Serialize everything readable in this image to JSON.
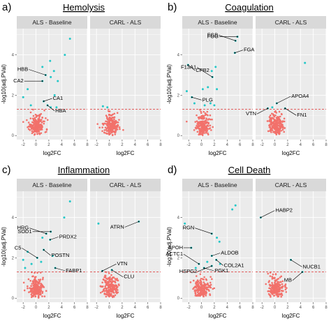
{
  "figure": {
    "xlabel": "log2FC",
    "ylabel": "-log10(adj.PVal)"
  },
  "colors": {
    "panel_bg": "#ebebeb",
    "strip_bg": "#d9d9d9",
    "grid": "#ffffff",
    "significant": "#22c7c7",
    "nonsignificant": "#f2716b",
    "threshold_line": "#e03030"
  },
  "chart_data": [
    {
      "type": "scatter",
      "panel": "a)",
      "title": "Hemolysis",
      "facets": [
        "ALS - Baseline",
        "CARL - ALS"
      ],
      "xlabel": "log2FC",
      "ylabel": "-log10(adj.PVal)",
      "xlim": [
        -3,
        8
      ],
      "ylim": [
        -0.2,
        5.3
      ],
      "x_ticks": [
        -2,
        0,
        2,
        4,
        6,
        8
      ],
      "y_ticks": [
        0,
        2,
        4
      ],
      "threshold_y": 1.3,
      "grid": true,
      "annotations": [
        {
          "facet": 0,
          "label": "HBB",
          "x": 1.5,
          "y": 3.0
        },
        {
          "facet": 0,
          "label": "CA2",
          "x": 1.0,
          "y": 2.7
        },
        {
          "facet": 0,
          "label": "CA1",
          "x": 1.2,
          "y": 1.7
        },
        {
          "facet": 0,
          "label": "HBA",
          "x": 1.8,
          "y": 1.5
        }
      ],
      "significant_points": [
        {
          "facet": 0,
          "x": 5.3,
          "y": 4.8
        },
        {
          "facet": 0,
          "x": 4.5,
          "y": 4.0
        },
        {
          "facet": 0,
          "x": 2.2,
          "y": 3.7
        },
        {
          "facet": 0,
          "x": 1.0,
          "y": 3.4
        },
        {
          "facet": 0,
          "x": 2.8,
          "y": 3.2
        },
        {
          "facet": 0,
          "x": 1.5,
          "y": 3.0
        },
        {
          "facet": 0,
          "x": 2.3,
          "y": 2.9
        },
        {
          "facet": 0,
          "x": 1.0,
          "y": 2.7
        },
        {
          "facet": 0,
          "x": 3.4,
          "y": 2.7
        },
        {
          "facet": 0,
          "x": -1.3,
          "y": 2.3
        },
        {
          "facet": 0,
          "x": 2.9,
          "y": 2.0
        },
        {
          "facet": 0,
          "x": -2.0,
          "y": 1.9
        },
        {
          "facet": 0,
          "x": 1.2,
          "y": 1.7
        },
        {
          "facet": 0,
          "x": 1.8,
          "y": 1.5
        },
        {
          "facet": 0,
          "x": -0.8,
          "y": 1.5
        },
        {
          "facet": 0,
          "x": 2.3,
          "y": 1.4
        },
        {
          "facet": 0,
          "x": 3.2,
          "y": 1.4
        },
        {
          "facet": 1,
          "x": -1.0,
          "y": 1.45
        },
        {
          "facet": 1,
          "x": -0.3,
          "y": 1.4
        }
      ]
    },
    {
      "type": "scatter",
      "panel": "b)",
      "title": "Coagulation",
      "facets": [
        "ALS - Baseline",
        "CARL - ALS"
      ],
      "xlabel": "log2FC",
      "ylabel": "-log10(adj.PVal)",
      "xlim": [
        -3,
        8
      ],
      "ylim": [
        -0.2,
        5.3
      ],
      "x_ticks": [
        -2,
        0,
        2,
        4,
        6,
        8
      ],
      "y_ticks": [
        0,
        2,
        4
      ],
      "threshold_y": 1.3,
      "grid": true,
      "annotations": [
        {
          "facet": 0,
          "label": "FGB",
          "x": 5.3,
          "y": 4.7
        },
        {
          "facet": 0,
          "label": "FGG",
          "x": 5.6,
          "y": 4.9
        },
        {
          "facet": 0,
          "label": "FGA",
          "x": 5.2,
          "y": 4.1
        },
        {
          "facet": 0,
          "label": "CPB2",
          "x": -2.1,
          "y": 3.5
        },
        {
          "facet": 0,
          "label": "F13A1",
          "x": 1.7,
          "y": 2.9
        },
        {
          "facet": 0,
          "label": "PLG",
          "x": -1.5,
          "y": 1.9
        },
        {
          "facet": 1,
          "label": "VTN",
          "x": -1.1,
          "y": 1.35
        },
        {
          "facet": 1,
          "label": "APOA4",
          "x": 0.3,
          "y": 1.6
        },
        {
          "facet": 1,
          "label": "FN1",
          "x": 1.6,
          "y": 1.35
        }
      ],
      "significant_points": [
        {
          "facet": 0,
          "x": 5.3,
          "y": 4.7
        },
        {
          "facet": 0,
          "x": 5.6,
          "y": 4.9
        },
        {
          "facet": 0,
          "x": 5.2,
          "y": 4.1
        },
        {
          "facet": 0,
          "x": -2.1,
          "y": 3.5
        },
        {
          "facet": 0,
          "x": 2.2,
          "y": 3.4
        },
        {
          "facet": 0,
          "x": 1.6,
          "y": 3.2
        },
        {
          "facet": 0,
          "x": 1.7,
          "y": 2.9
        },
        {
          "facet": 0,
          "x": 0.2,
          "y": 2.3
        },
        {
          "facet": 0,
          "x": 1.0,
          "y": 2.4
        },
        {
          "facet": 0,
          "x": 2.4,
          "y": 2.3
        },
        {
          "facet": 0,
          "x": -1.5,
          "y": 1.9
        },
        {
          "facet": 0,
          "x": -2.3,
          "y": 2.2
        },
        {
          "facet": 0,
          "x": -1.1,
          "y": 1.6
        },
        {
          "facet": 0,
          "x": 0.5,
          "y": 1.5
        },
        {
          "facet": 0,
          "x": 1.4,
          "y": 1.6
        },
        {
          "facet": 0,
          "x": 2.0,
          "y": 1.5
        },
        {
          "facet": 1,
          "x": -1.1,
          "y": 1.35
        },
        {
          "facet": 1,
          "x": 0.3,
          "y": 1.6
        },
        {
          "facet": 1,
          "x": 1.6,
          "y": 1.35
        },
        {
          "facet": 1,
          "x": -0.4,
          "y": 1.4
        },
        {
          "facet": 1,
          "x": 4.7,
          "y": 3.6
        }
      ]
    },
    {
      "type": "scatter",
      "panel": "c)",
      "title": "Inflammation",
      "facets": [
        "ALS - Baseline",
        "CARL - ALS"
      ],
      "xlabel": "log2FC",
      "ylabel": "-log10(adj.PVal)",
      "xlim": [
        -3,
        8
      ],
      "ylim": [
        -0.2,
        5.3
      ],
      "x_ticks": [
        -2,
        0,
        2,
        4,
        6,
        8
      ],
      "y_ticks": [
        0,
        2,
        4
      ],
      "threshold_y": 1.3,
      "grid": true,
      "annotations": [
        {
          "facet": 0,
          "label": "HRG",
          "x": 1.6,
          "y": 3.2
        },
        {
          "facet": 0,
          "label": "SOD1",
          "x": 2.3,
          "y": 3.3
        },
        {
          "facet": 0,
          "label": "PRDX2",
          "x": 2.2,
          "y": 2.9
        },
        {
          "facet": 0,
          "label": "POSTN",
          "x": 1.2,
          "y": 2.4
        },
        {
          "facet": 0,
          "label": "C5",
          "x": 0.2,
          "y": 2.0
        },
        {
          "facet": 0,
          "label": "FABP1",
          "x": 3.0,
          "y": 1.5
        },
        {
          "facet": 1,
          "label": "ATRN",
          "x": 4.6,
          "y": 3.8
        },
        {
          "facet": 1,
          "label": "VTN",
          "x": -1.1,
          "y": 1.35
        },
        {
          "facet": 1,
          "label": "CLU",
          "x": 0.4,
          "y": 1.4
        }
      ],
      "significant_points": [
        {
          "facet": 0,
          "x": 5.3,
          "y": 4.8
        },
        {
          "facet": 0,
          "x": 4.4,
          "y": 4.0
        },
        {
          "facet": 0,
          "x": 1.6,
          "y": 3.2
        },
        {
          "facet": 0,
          "x": 2.3,
          "y": 3.3
        },
        {
          "facet": 0,
          "x": 2.2,
          "y": 2.9
        },
        {
          "facet": 0,
          "x": 1.0,
          "y": 3.0
        },
        {
          "facet": 0,
          "x": 1.2,
          "y": 2.4
        },
        {
          "facet": 0,
          "x": 0.2,
          "y": 2.0
        },
        {
          "facet": 0,
          "x": -1.3,
          "y": 2.3
        },
        {
          "facet": 0,
          "x": -2.0,
          "y": 1.9
        },
        {
          "facet": 0,
          "x": -0.7,
          "y": 1.7
        },
        {
          "facet": 0,
          "x": 0.8,
          "y": 1.8
        },
        {
          "facet": 0,
          "x": -1.7,
          "y": 1.5
        },
        {
          "facet": 0,
          "x": 3.0,
          "y": 1.5
        },
        {
          "facet": 0,
          "x": 2.6,
          "y": 2.1
        },
        {
          "facet": 1,
          "x": 4.6,
          "y": 3.8
        },
        {
          "facet": 1,
          "x": -1.1,
          "y": 1.35
        },
        {
          "facet": 1,
          "x": 0.4,
          "y": 1.4
        },
        {
          "facet": 1,
          "x": -1.7,
          "y": 3.7
        }
      ]
    },
    {
      "type": "scatter",
      "panel": "d)",
      "title": "Cell Death",
      "facets": [
        "ALS - Baseline",
        "CARL - ALS"
      ],
      "xlabel": "log2FC",
      "ylabel": "-log10(adj.PVal)",
      "xlim": [
        -3,
        8
      ],
      "ylim": [
        -0.2,
        5.3
      ],
      "x_ticks": [
        -2,
        0,
        2,
        4,
        6,
        8
      ],
      "y_ticks": [
        0,
        2,
        4
      ],
      "threshold_y": 1.3,
      "grid": true,
      "annotations": [
        {
          "facet": 0,
          "label": "RGN",
          "x": 1.6,
          "y": 3.2
        },
        {
          "facet": 0,
          "label": "APOH",
          "x": -1.6,
          "y": 2.5
        },
        {
          "facet": 0,
          "label": "ALDOB",
          "x": 1.6,
          "y": 2.1
        },
        {
          "facet": 0,
          "label": "COL2A1",
          "x": 2.3,
          "y": 1.9
        },
        {
          "facet": 0,
          "label": "ACTC1",
          "x": -0.4,
          "y": 1.7
        },
        {
          "facet": 0,
          "label": "PGK1",
          "x": 0.4,
          "y": 1.5
        },
        {
          "facet": 0,
          "label": "HSPG2",
          "x": 1.6,
          "y": 1.6
        },
        {
          "facet": 1,
          "label": "HABP2",
          "x": -2.2,
          "y": 4.0
        },
        {
          "facet": 1,
          "label": "NUCB1",
          "x": 2.5,
          "y": 1.9
        },
        {
          "facet": 1,
          "label": "MB",
          "x": 4.3,
          "y": 1.3
        }
      ],
      "significant_points": [
        {
          "facet": 0,
          "x": 5.3,
          "y": 4.6
        },
        {
          "facet": 0,
          "x": 4.8,
          "y": 4.4
        },
        {
          "facet": 0,
          "x": 1.6,
          "y": 3.2
        },
        {
          "facet": 0,
          "x": 2.4,
          "y": 3.0
        },
        {
          "facet": 0,
          "x": 2.8,
          "y": 2.8
        },
        {
          "facet": 0,
          "x": -2.6,
          "y": 3.7
        },
        {
          "facet": 0,
          "x": -1.6,
          "y": 2.5
        },
        {
          "facet": 0,
          "x": 1.6,
          "y": 2.1
        },
        {
          "facet": 0,
          "x": 2.3,
          "y": 1.9
        },
        {
          "facet": 0,
          "x": -0.4,
          "y": 1.7
        },
        {
          "facet": 0,
          "x": 0.4,
          "y": 1.5
        },
        {
          "facet": 0,
          "x": 1.6,
          "y": 1.6
        },
        {
          "facet": 0,
          "x": 0.9,
          "y": 1.8
        },
        {
          "facet": 0,
          "x": 2.9,
          "y": 1.7
        },
        {
          "facet": 0,
          "x": -0.9,
          "y": 1.5
        },
        {
          "facet": 1,
          "x": -2.2,
          "y": 4.0
        },
        {
          "facet": 1,
          "x": 2.5,
          "y": 1.9
        },
        {
          "facet": 1,
          "x": 4.3,
          "y": 1.3
        }
      ]
    }
  ]
}
